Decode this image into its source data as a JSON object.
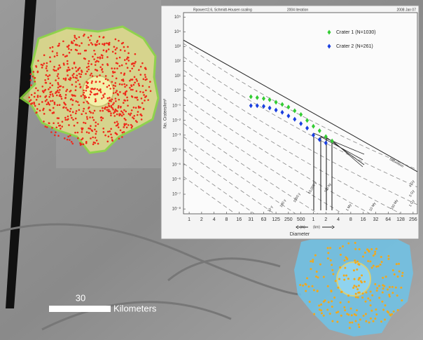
{
  "map": {
    "scale_bar": {
      "value": 30,
      "unit": "Kilometers"
    }
  },
  "chart_data": {
    "type": "scatter",
    "annotations": [
      "Rpower=2.6, Schmidt-Housen scaling",
      "2004 iteration",
      "2008 Jan 07"
    ],
    "ylabel": "No. Craters/km²",
    "xlabel": "Diameter",
    "x_unit_labels": [
      "(m)",
      "(km)"
    ],
    "xscale": "log",
    "yscale": "log",
    "xlim": [
      0.00073,
      325
    ],
    "ylim": [
      4.7e-09,
      200000
    ],
    "xticks": [
      {
        "value": 0.001,
        "label": "1"
      },
      {
        "value": 0.002,
        "label": "2"
      },
      {
        "value": 0.004,
        "label": "4"
      },
      {
        "value": 0.008,
        "label": "8"
      },
      {
        "value": 0.016,
        "label": "16"
      },
      {
        "value": 0.031,
        "label": "31"
      },
      {
        "value": 0.063,
        "label": "63"
      },
      {
        "value": 0.125,
        "label": "125"
      },
      {
        "value": 0.25,
        "label": "250"
      },
      {
        "value": 0.5,
        "label": "500"
      },
      1,
      2,
      4,
      8,
      16,
      32,
      64,
      128,
      256
    ],
    "yticks": [
      {
        "value": 100000,
        "label": "10⁵"
      },
      {
        "value": 10000,
        "label": "10⁴"
      },
      {
        "value": 1000,
        "label": "10³"
      },
      {
        "value": 100,
        "label": "10²"
      },
      {
        "value": 10,
        "label": "10¹"
      },
      {
        "value": 1,
        "label": "10⁰"
      },
      {
        "value": 0.1,
        "label": "10⁻¹"
      },
      {
        "value": 0.01,
        "label": "10⁻²"
      },
      {
        "value": 0.001,
        "label": "10⁻³"
      },
      {
        "value": 0.0001,
        "label": "10⁻⁴"
      },
      {
        "value": 1e-05,
        "label": "10⁻⁵"
      },
      {
        "value": 1e-06,
        "label": "10⁻⁶"
      },
      {
        "value": 1e-07,
        "label": "10⁻⁷"
      },
      {
        "value": 1e-08,
        "label": "10⁻⁸"
      }
    ],
    "isochron_labels": [
      "Saturation",
      "4 Gy",
      "3 Gy",
      "1 Gy",
      "100 My",
      "10 My",
      "1 My",
      "100 ky",
      "10,000 y",
      "1000 y",
      "100 y",
      "10 y"
    ],
    "legend": "top-right",
    "series": [
      {
        "name": "Crater 1  (N=1030)",
        "color": "#33cc33",
        "x": [
          0.031,
          0.044,
          0.063,
          0.088,
          0.125,
          0.177,
          0.25,
          0.354,
          0.5,
          0.707,
          1,
          1.41,
          2,
          2.83
        ],
        "values": [
          0.4,
          0.35,
          0.3,
          0.25,
          0.17,
          0.12,
          0.08,
          0.045,
          0.025,
          0.01,
          0.004,
          0.002,
          0.0008,
          0.0004
        ]
      },
      {
        "name": "Crater 2  (N=261)",
        "color": "#1a3fe0",
        "x": [
          0.031,
          0.044,
          0.063,
          0.088,
          0.125,
          0.177,
          0.25,
          0.354,
          0.5,
          0.707,
          1,
          1.41,
          2
        ],
        "values": [
          0.1,
          0.1,
          0.09,
          0.07,
          0.05,
          0.035,
          0.02,
          0.012,
          0.006,
          0.003,
          0.001,
          0.0005,
          0.0003
        ]
      }
    ]
  }
}
